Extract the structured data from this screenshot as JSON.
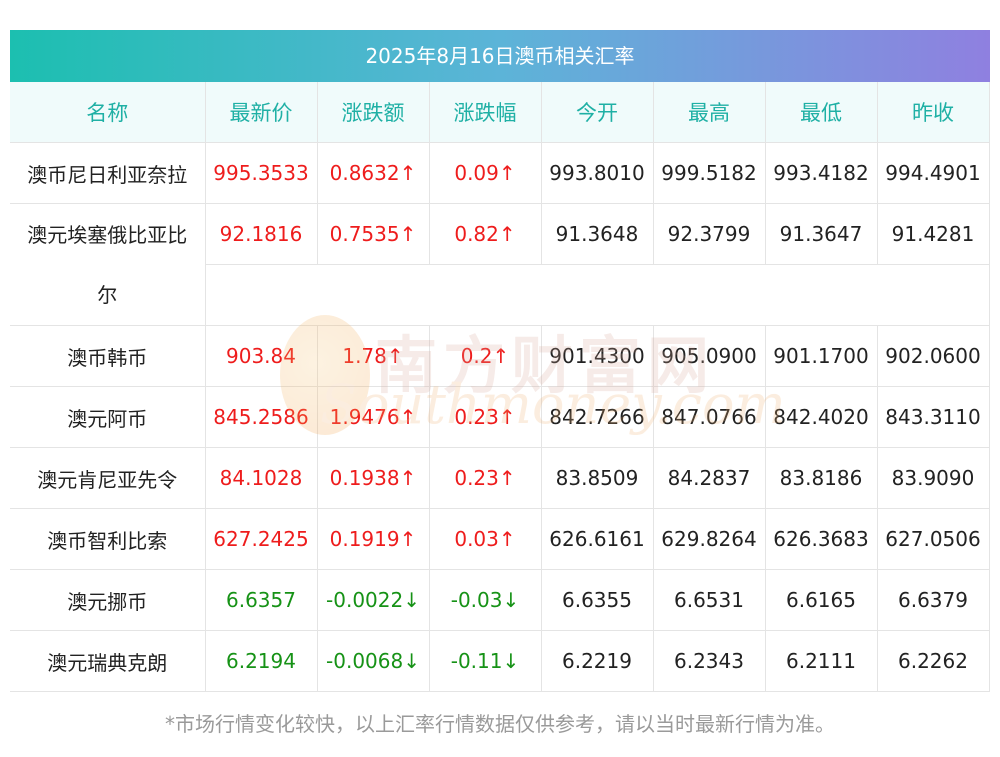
{
  "title": "2025年8月16日澳币相关汇率",
  "headers": [
    "名称",
    "最新价",
    "涨跌额",
    "涨跌幅",
    "今开",
    "最高",
    "最低",
    "昨收"
  ],
  "rows": [
    {
      "name": "澳币尼日利亚奈拉",
      "latest": "995.3533",
      "change": "0.8632↑",
      "pct": "0.09↑",
      "open": "993.8010",
      "high": "999.5182",
      "low": "993.4182",
      "prev": "994.4901",
      "trend": "up"
    },
    {
      "name": "澳元埃塞俄比亚比尔",
      "latest": "92.1816",
      "change": "0.7535↑",
      "pct": "0.82↑",
      "open": "91.3648",
      "high": "92.3799",
      "low": "91.3647",
      "prev": "91.4281",
      "trend": "up"
    },
    {
      "name": "澳币韩币",
      "latest": "903.84",
      "change": "1.78↑",
      "pct": "0.2↑",
      "open": "901.4300",
      "high": "905.0900",
      "low": "901.1700",
      "prev": "902.0600",
      "trend": "up"
    },
    {
      "name": "澳元阿币",
      "latest": "845.2586",
      "change": "1.9476↑",
      "pct": "0.23↑",
      "open": "842.7266",
      "high": "847.0766",
      "low": "842.4020",
      "prev": "843.3110",
      "trend": "up"
    },
    {
      "name": "澳元肯尼亚先令",
      "latest": "84.1028",
      "change": "0.1938↑",
      "pct": "0.23↑",
      "open": "83.8509",
      "high": "84.2837",
      "low": "83.8186",
      "prev": "83.9090",
      "trend": "up"
    },
    {
      "name": "澳币智利比索",
      "latest": "627.2425",
      "change": "0.1919↑",
      "pct": "0.03↑",
      "open": "626.6161",
      "high": "629.8264",
      "low": "626.3683",
      "prev": "627.0506",
      "trend": "up"
    },
    {
      "name": "澳元挪币",
      "latest": "6.6357",
      "change": "-0.0022↓",
      "pct": "-0.03↓",
      "open": "6.6355",
      "high": "6.6531",
      "low": "6.6165",
      "prev": "6.6379",
      "trend": "down"
    },
    {
      "name": "澳元瑞典克朗",
      "latest": "6.2194",
      "change": "-0.0068↓",
      "pct": "-0.11↓",
      "open": "6.2219",
      "high": "6.2343",
      "low": "6.2111",
      "prev": "6.2262",
      "trend": "down"
    }
  ],
  "watermark": {
    "cn": "南方财富网",
    "en": "Southmoney.com"
  },
  "footnote": "*市场行情变化较快，以上汇率行情数据仅供参考，请以当时最新行情为准。",
  "colors": {
    "up": "#ee1c1c",
    "down": "#169216",
    "header_text": "#1fb0a5"
  }
}
